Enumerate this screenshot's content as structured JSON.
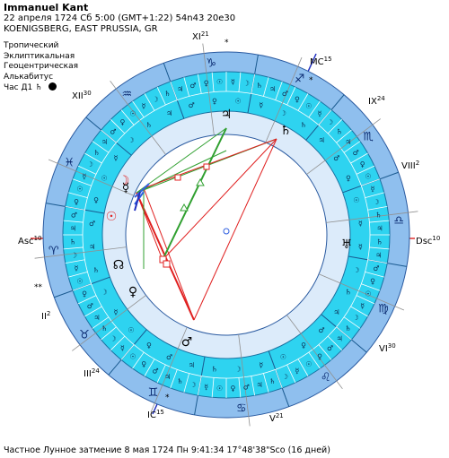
{
  "header": {
    "name": "Immanuel Kant",
    "line1": "22 апреля 1724  Сб   5:00 (GMT+1:22) 54n43  20e30",
    "line2": "KOENIGSBERG, EAST PRUSSIA, GR"
  },
  "settings": {
    "zodiac": "Тропический",
    "coords": "Эклиптикальная",
    "center": "Геоцентрическая",
    "houses": "Алькабитус",
    "hour_label": "Час Д1",
    "hour_planet_glyph": "♄"
  },
  "footer": {
    "eclipse": "Частное Лунное затмение 8 мая 1724 Пн  9:41:34 17°48'38\"Sco (16 дней)"
  },
  "houses": [
    {
      "label": "XI",
      "sup": "21"
    },
    {
      "label": "MC",
      "sup": "15"
    },
    {
      "label": "IX",
      "sup": "24"
    },
    {
      "label": "VIII",
      "sup": "2"
    },
    {
      "label": "Dsc",
      "sup": "10"
    },
    {
      "label": "VI",
      "sup": "30"
    },
    {
      "label": "V",
      "sup": "21"
    },
    {
      "label": "IC",
      "sup": "15"
    },
    {
      "label": "III",
      "sup": "24"
    },
    {
      "label": "II",
      "sup": "2"
    },
    {
      "label": "Asc",
      "sup": "10"
    },
    {
      "label": "XII",
      "sup": "30"
    }
  ],
  "signs": [
    {
      "glyph": "♈",
      "name": "aries"
    },
    {
      "glyph": "♉",
      "name": "taurus"
    },
    {
      "glyph": "♊",
      "name": "gemini"
    },
    {
      "glyph": "♋",
      "name": "cancer"
    },
    {
      "glyph": "♌",
      "name": "leo"
    },
    {
      "glyph": "♍",
      "name": "virgo"
    },
    {
      "glyph": "♎",
      "name": "libra"
    },
    {
      "glyph": "♏",
      "name": "scorpio"
    },
    {
      "glyph": "♐",
      "name": "sagittarius"
    },
    {
      "glyph": "♑",
      "name": "capricorn"
    },
    {
      "glyph": "♒",
      "name": "aquarius"
    },
    {
      "glyph": "♓",
      "name": "pisces"
    }
  ],
  "planets": [
    {
      "glyph": "♃",
      "name": "jupiter"
    },
    {
      "glyph": "♄",
      "name": "saturn"
    },
    {
      "glyph": "☽",
      "name": "moon"
    },
    {
      "glyph": "☿",
      "name": "mercury"
    },
    {
      "glyph": "☉",
      "name": "sun"
    },
    {
      "glyph": "♀",
      "name": "venus"
    },
    {
      "glyph": "♂",
      "name": "mars"
    },
    {
      "glyph": "♅",
      "name": "uranus"
    },
    {
      "glyph": "☊",
      "name": "node"
    }
  ],
  "colors": {
    "ring_outer": "#8fbfee",
    "ring_cyan": "#2ed3f0",
    "ring_inner": "#dcebfa",
    "axis": "#e03030",
    "mc_axis": "#2030c0",
    "aspect_red": "#e02020",
    "aspect_green": "#30a030",
    "aspect_blue": "#3060e0"
  }
}
